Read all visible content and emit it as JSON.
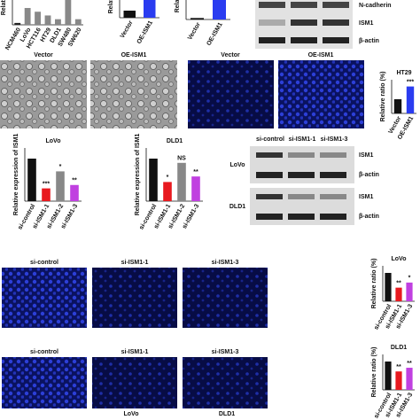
{
  "panels": {
    "expr_lines": {
      "ylabel": "Relative ex",
      "categories": [
        "NCM460",
        "LoVo",
        "HCT116",
        "HT29",
        "DLD1",
        "SW480",
        "SW620"
      ],
      "values": [
        0.1,
        0.9,
        0.7,
        0.5,
        0.3,
        2.2,
        0.3
      ],
      "colors": [
        "#222",
        "#888",
        "#888",
        "#888",
        "#888",
        "#888",
        "#888"
      ]
    },
    "oe_mrna": {
      "ylabel": "Relative exp",
      "categories": [
        "Vector",
        "OE-ISM1"
      ],
      "values": [
        1,
        5
      ],
      "colors": [
        "#111",
        "#2a3cf0"
      ]
    },
    "oe_protein": {
      "ylabel": "Relative ex",
      "categories": [
        "Vector",
        "OE-ISM1"
      ],
      "values": [
        0.2,
        5
      ],
      "colors": [
        "#111",
        "#2a3cf0"
      ]
    },
    "blot_top": {
      "labels": [
        "N-cadherin",
        "ISM1",
        "β-actin"
      ]
    },
    "brightfield": {
      "labels": [
        "Vector",
        "OE-ISM1"
      ]
    },
    "fluor_oe": {
      "labels": [
        "Vector",
        "OE-ISM1"
      ]
    },
    "ht29": {
      "title": "HT29",
      "ylabel": "Relative ratio (%)",
      "categories": [
        "Vector",
        "OE-ISM1"
      ],
      "values": [
        100,
        190
      ],
      "sig": [
        null,
        "***"
      ],
      "colors": [
        "#111",
        "#2a3cf0"
      ]
    },
    "lovo_expr": {
      "title": "LoVo",
      "ylabel": "Relative expression of ISM1",
      "categories": [
        "si-control",
        "si-ISM1-1",
        "si-ISM1-2",
        "si-ISM1-3"
      ],
      "values": [
        1.0,
        0.3,
        0.7,
        0.38
      ],
      "sig": [
        null,
        "***",
        "*",
        "**"
      ],
      "colors": [
        "#111",
        "#e8191f",
        "#888",
        "#c040e0"
      ]
    },
    "dld1_expr": {
      "title": "DLD1",
      "ylabel": "Relative expression of ISM1",
      "categories": [
        "si-control",
        "si-ISM1-1",
        "si-ISM1-2",
        "si-ISM1-3"
      ],
      "values": [
        1.0,
        0.45,
        0.9,
        0.58
      ],
      "sig": [
        null,
        "*",
        "NS",
        "**"
      ],
      "colors": [
        "#111",
        "#e8191f",
        "#888",
        "#c040e0"
      ]
    },
    "blot_mid": {
      "columns": [
        "si-control",
        "si-ISM1-1",
        "si-ISM1-3"
      ],
      "rows": [
        "LoVo",
        "DLD1"
      ],
      "bands": [
        "ISM1",
        "β-actin",
        "ISM1",
        "β-actin"
      ]
    },
    "fluor_lovo": {
      "labels": [
        "si-control",
        "si-ISM1-1",
        "si-ISM1-3"
      ]
    },
    "fluor_dld1": {
      "labels": [
        "si-control",
        "si-ISM1-1",
        "si-ISM1-3"
      ]
    },
    "lovo_ratio": {
      "title": "LoVo",
      "ylabel": "Relative ratio (%)",
      "categories": [
        "si-control",
        "si-ISM1-1",
        "si-ISM1-3"
      ],
      "values": [
        100,
        48,
        66
      ],
      "sig": [
        null,
        "**",
        "*"
      ],
      "colors": [
        "#111",
        "#e8191f",
        "#c040e0"
      ]
    },
    "dld1_ratio": {
      "title": "DLD1",
      "ylabel": "Relative ratio (%)",
      "categories": [
        "si-control",
        "si-ISM1-1",
        "si-ISM1-3"
      ],
      "values": [
        100,
        65,
        78
      ],
      "sig": [
        null,
        "**",
        "**"
      ],
      "colors": [
        "#111",
        "#e8191f",
        "#c040e0"
      ]
    },
    "footer": {
      "labels": [
        "LoVo",
        "DLD1"
      ]
    }
  }
}
